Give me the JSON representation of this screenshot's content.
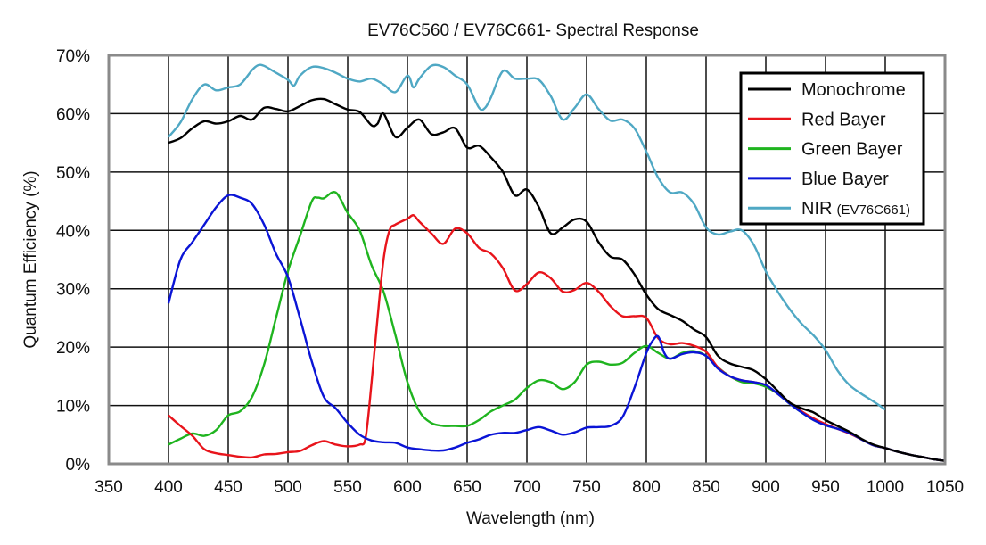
{
  "chart_data": {
    "type": "line",
    "title": "EV76C560 / EV76C661- Spectral Response",
    "xlabel": "Wavelength (nm)",
    "ylabel": "Quantum Efficiency (%)",
    "xlim": [
      350,
      1050
    ],
    "ylim": [
      0,
      70
    ],
    "xticks": [
      350,
      400,
      450,
      500,
      550,
      600,
      650,
      700,
      750,
      800,
      850,
      900,
      950,
      1000,
      1050
    ],
    "xtick_labels": [
      "350",
      "400",
      "450",
      "500",
      "550",
      "600",
      "650",
      "700",
      "750",
      "800",
      "850",
      "900",
      "950",
      "1000",
      "1050"
    ],
    "yticks": [
      0,
      10,
      20,
      30,
      40,
      50,
      60,
      70
    ],
    "ytick_labels": [
      "0%",
      "10%",
      "20%",
      "30%",
      "40%",
      "50%",
      "60%",
      "70%"
    ],
    "grid": true,
    "legend_position": "top-right",
    "series": [
      {
        "name": "Monochrome",
        "legend_suffix": "",
        "color": "#000000",
        "x": [
          400,
          410,
          420,
          430,
          440,
          450,
          460,
          470,
          480,
          490,
          500,
          510,
          520,
          530,
          540,
          550,
          560,
          570,
          575,
          580,
          590,
          600,
          610,
          620,
          630,
          640,
          650,
          660,
          670,
          680,
          690,
          700,
          710,
          720,
          730,
          740,
          750,
          760,
          770,
          780,
          790,
          800,
          810,
          820,
          830,
          840,
          850,
          860,
          870,
          880,
          890,
          900,
          910,
          920,
          930,
          940,
          950,
          960,
          970,
          980,
          990,
          1000,
          1010,
          1020,
          1030,
          1040,
          1050
        ],
        "y": [
          55,
          55.8,
          57.5,
          58.7,
          58.3,
          58.7,
          59.6,
          59,
          61,
          60.8,
          60.4,
          61.3,
          62.3,
          62.5,
          61.6,
          60.7,
          60.3,
          58,
          58.3,
          60,
          56,
          57.6,
          59,
          56.5,
          56.8,
          57.5,
          54.2,
          54.5,
          52.5,
          50,
          46,
          47,
          44,
          39.5,
          40.5,
          41.9,
          41.5,
          38,
          35.5,
          35,
          32.5,
          29,
          26.5,
          25.5,
          24.5,
          23,
          21.7,
          18.5,
          17.2,
          16.6,
          16,
          14.5,
          12.5,
          10.5,
          9.5,
          8.8,
          7.5,
          6.5,
          5.5,
          4.3,
          3.3,
          2.7,
          2.1,
          1.6,
          1.2,
          0.8,
          0.5
        ]
      },
      {
        "name": "Red Bayer",
        "legend_suffix": "",
        "color": "#e8141b",
        "x": [
          400,
          410,
          420,
          430,
          440,
          450,
          460,
          470,
          480,
          490,
          500,
          510,
          520,
          530,
          540,
          550,
          560,
          565,
          570,
          575,
          580,
          585,
          590,
          600,
          605,
          610,
          620,
          630,
          640,
          650,
          660,
          670,
          680,
          690,
          700,
          710,
          720,
          730,
          740,
          750,
          760,
          770,
          780,
          790,
          800,
          810,
          820,
          830,
          840,
          850,
          860,
          870,
          880,
          890,
          900,
          910,
          920,
          930,
          940,
          950,
          960,
          970,
          980,
          990,
          1000,
          1010,
          1020,
          1030,
          1040,
          1050
        ],
        "y": [
          8.3,
          6.5,
          4.8,
          2.5,
          1.8,
          1.5,
          1.2,
          1.1,
          1.6,
          1.7,
          2,
          2.2,
          3.2,
          3.9,
          3.3,
          3,
          3.3,
          4.5,
          14,
          25,
          35,
          40,
          41,
          42,
          42.6,
          41.5,
          39.5,
          37.7,
          40.3,
          39.5,
          37,
          36,
          33.5,
          29.7,
          30.8,
          32.8,
          31.8,
          29.5,
          29.8,
          31,
          29.5,
          27,
          25.3,
          25.3,
          25,
          21.5,
          20.5,
          20.7,
          20.2,
          19.2,
          16.5,
          15,
          14.3,
          14,
          13.5,
          12,
          10.5,
          9,
          7.8,
          6.8,
          6,
          5.2,
          4.2,
          3.2,
          2.7,
          2.1,
          1.6,
          1.2,
          0.8,
          0.5
        ]
      },
      {
        "name": "Green Bayer",
        "legend_suffix": "",
        "color": "#1fb41f",
        "x": [
          400,
          410,
          420,
          430,
          440,
          450,
          460,
          470,
          480,
          490,
          500,
          510,
          520,
          525,
          530,
          540,
          550,
          560,
          570,
          580,
          590,
          600,
          610,
          620,
          630,
          640,
          650,
          660,
          670,
          680,
          690,
          700,
          710,
          720,
          730,
          740,
          750,
          760,
          770,
          780,
          790,
          800,
          810,
          820,
          830,
          840,
          850,
          860,
          870,
          880,
          890,
          900,
          910,
          920,
          930,
          940,
          950,
          960,
          970,
          980,
          990,
          1000,
          1010,
          1020,
          1030,
          1040,
          1050
        ],
        "y": [
          3.3,
          4.3,
          5.2,
          4.8,
          5.8,
          8.3,
          9,
          11.5,
          17,
          25,
          33,
          39,
          45,
          45.6,
          45.5,
          46.5,
          43,
          40,
          34,
          29.5,
          22,
          14,
          9,
          7,
          6.5,
          6.5,
          6.5,
          7.5,
          9,
          10,
          11,
          13,
          14.3,
          14,
          12.8,
          14,
          17,
          17.5,
          17,
          17.3,
          19,
          20.2,
          19,
          18,
          19,
          19.3,
          18.5,
          16.5,
          15,
          14,
          13.8,
          13.2,
          12,
          10.3,
          8.8,
          7.5,
          6.6,
          6,
          5.3,
          4.2,
          3.2,
          2.7,
          2.1,
          1.6,
          1.2,
          0.8,
          0.5
        ]
      },
      {
        "name": "Blue Bayer",
        "legend_suffix": "",
        "color": "#0a14d6",
        "x": [
          400,
          410,
          420,
          430,
          440,
          450,
          460,
          470,
          480,
          490,
          500,
          510,
          520,
          530,
          540,
          550,
          560,
          570,
          580,
          590,
          600,
          610,
          620,
          630,
          640,
          650,
          660,
          670,
          680,
          690,
          700,
          710,
          720,
          730,
          740,
          750,
          760,
          770,
          780,
          790,
          800,
          805,
          810,
          815,
          820,
          830,
          840,
          850,
          860,
          870,
          880,
          890,
          900,
          910,
          920,
          930,
          940,
          950,
          960,
          970,
          980,
          990,
          1000,
          1010,
          1020,
          1030,
          1040,
          1050
        ],
        "y": [
          27.5,
          35,
          38,
          41,
          44,
          46,
          45.6,
          44.5,
          41,
          36,
          32,
          25,
          17.5,
          11.5,
          9.5,
          7,
          5,
          4,
          3.7,
          3.6,
          2.8,
          2.5,
          2.3,
          2.3,
          2.8,
          3.6,
          4.2,
          5,
          5.3,
          5.3,
          5.8,
          6.3,
          5.7,
          5,
          5.4,
          6.2,
          6.3,
          6.5,
          8,
          13,
          19,
          21,
          21.8,
          19,
          18,
          18.8,
          19.1,
          18.5,
          16.3,
          15,
          14.3,
          14,
          13.5,
          12,
          10.3,
          8.8,
          7.5,
          6.6,
          6,
          5.3,
          4.2,
          3.2,
          2.7,
          2.1,
          1.6,
          1.2,
          0.8,
          0.5
        ]
      },
      {
        "name": "NIR",
        "legend_suffix": "(EV76C661)",
        "color": "#4fa8c4",
        "x": [
          400,
          410,
          420,
          430,
          440,
          450,
          460,
          470,
          475,
          480,
          490,
          500,
          505,
          510,
          520,
          530,
          540,
          550,
          560,
          570,
          580,
          590,
          600,
          605,
          610,
          620,
          630,
          640,
          650,
          660,
          665,
          670,
          680,
          690,
          700,
          710,
          720,
          730,
          740,
          750,
          760,
          770,
          780,
          790,
          800,
          810,
          820,
          830,
          840,
          850,
          860,
          870,
          880,
          890,
          900,
          910,
          920,
          930,
          940,
          950,
          960,
          970,
          980,
          990,
          1000
        ],
        "y": [
          56,
          58.5,
          62.5,
          65,
          64,
          64.5,
          65,
          67.5,
          68.3,
          68.2,
          67,
          65.8,
          64.8,
          66.5,
          68,
          67.8,
          67,
          66,
          65.5,
          66,
          65,
          63.7,
          66.5,
          64.5,
          66,
          68.2,
          68,
          66.5,
          65,
          61,
          61,
          62.8,
          67.3,
          66,
          66,
          65.8,
          63,
          59,
          61,
          63.3,
          60.8,
          58.8,
          59,
          57.5,
          53.5,
          49,
          46.5,
          46.5,
          44.5,
          40.5,
          39.3,
          39.8,
          40,
          37.5,
          33,
          29.5,
          26.5,
          24,
          22,
          19.5,
          16,
          13.5,
          12,
          10.7,
          9.3
        ]
      }
    ]
  }
}
